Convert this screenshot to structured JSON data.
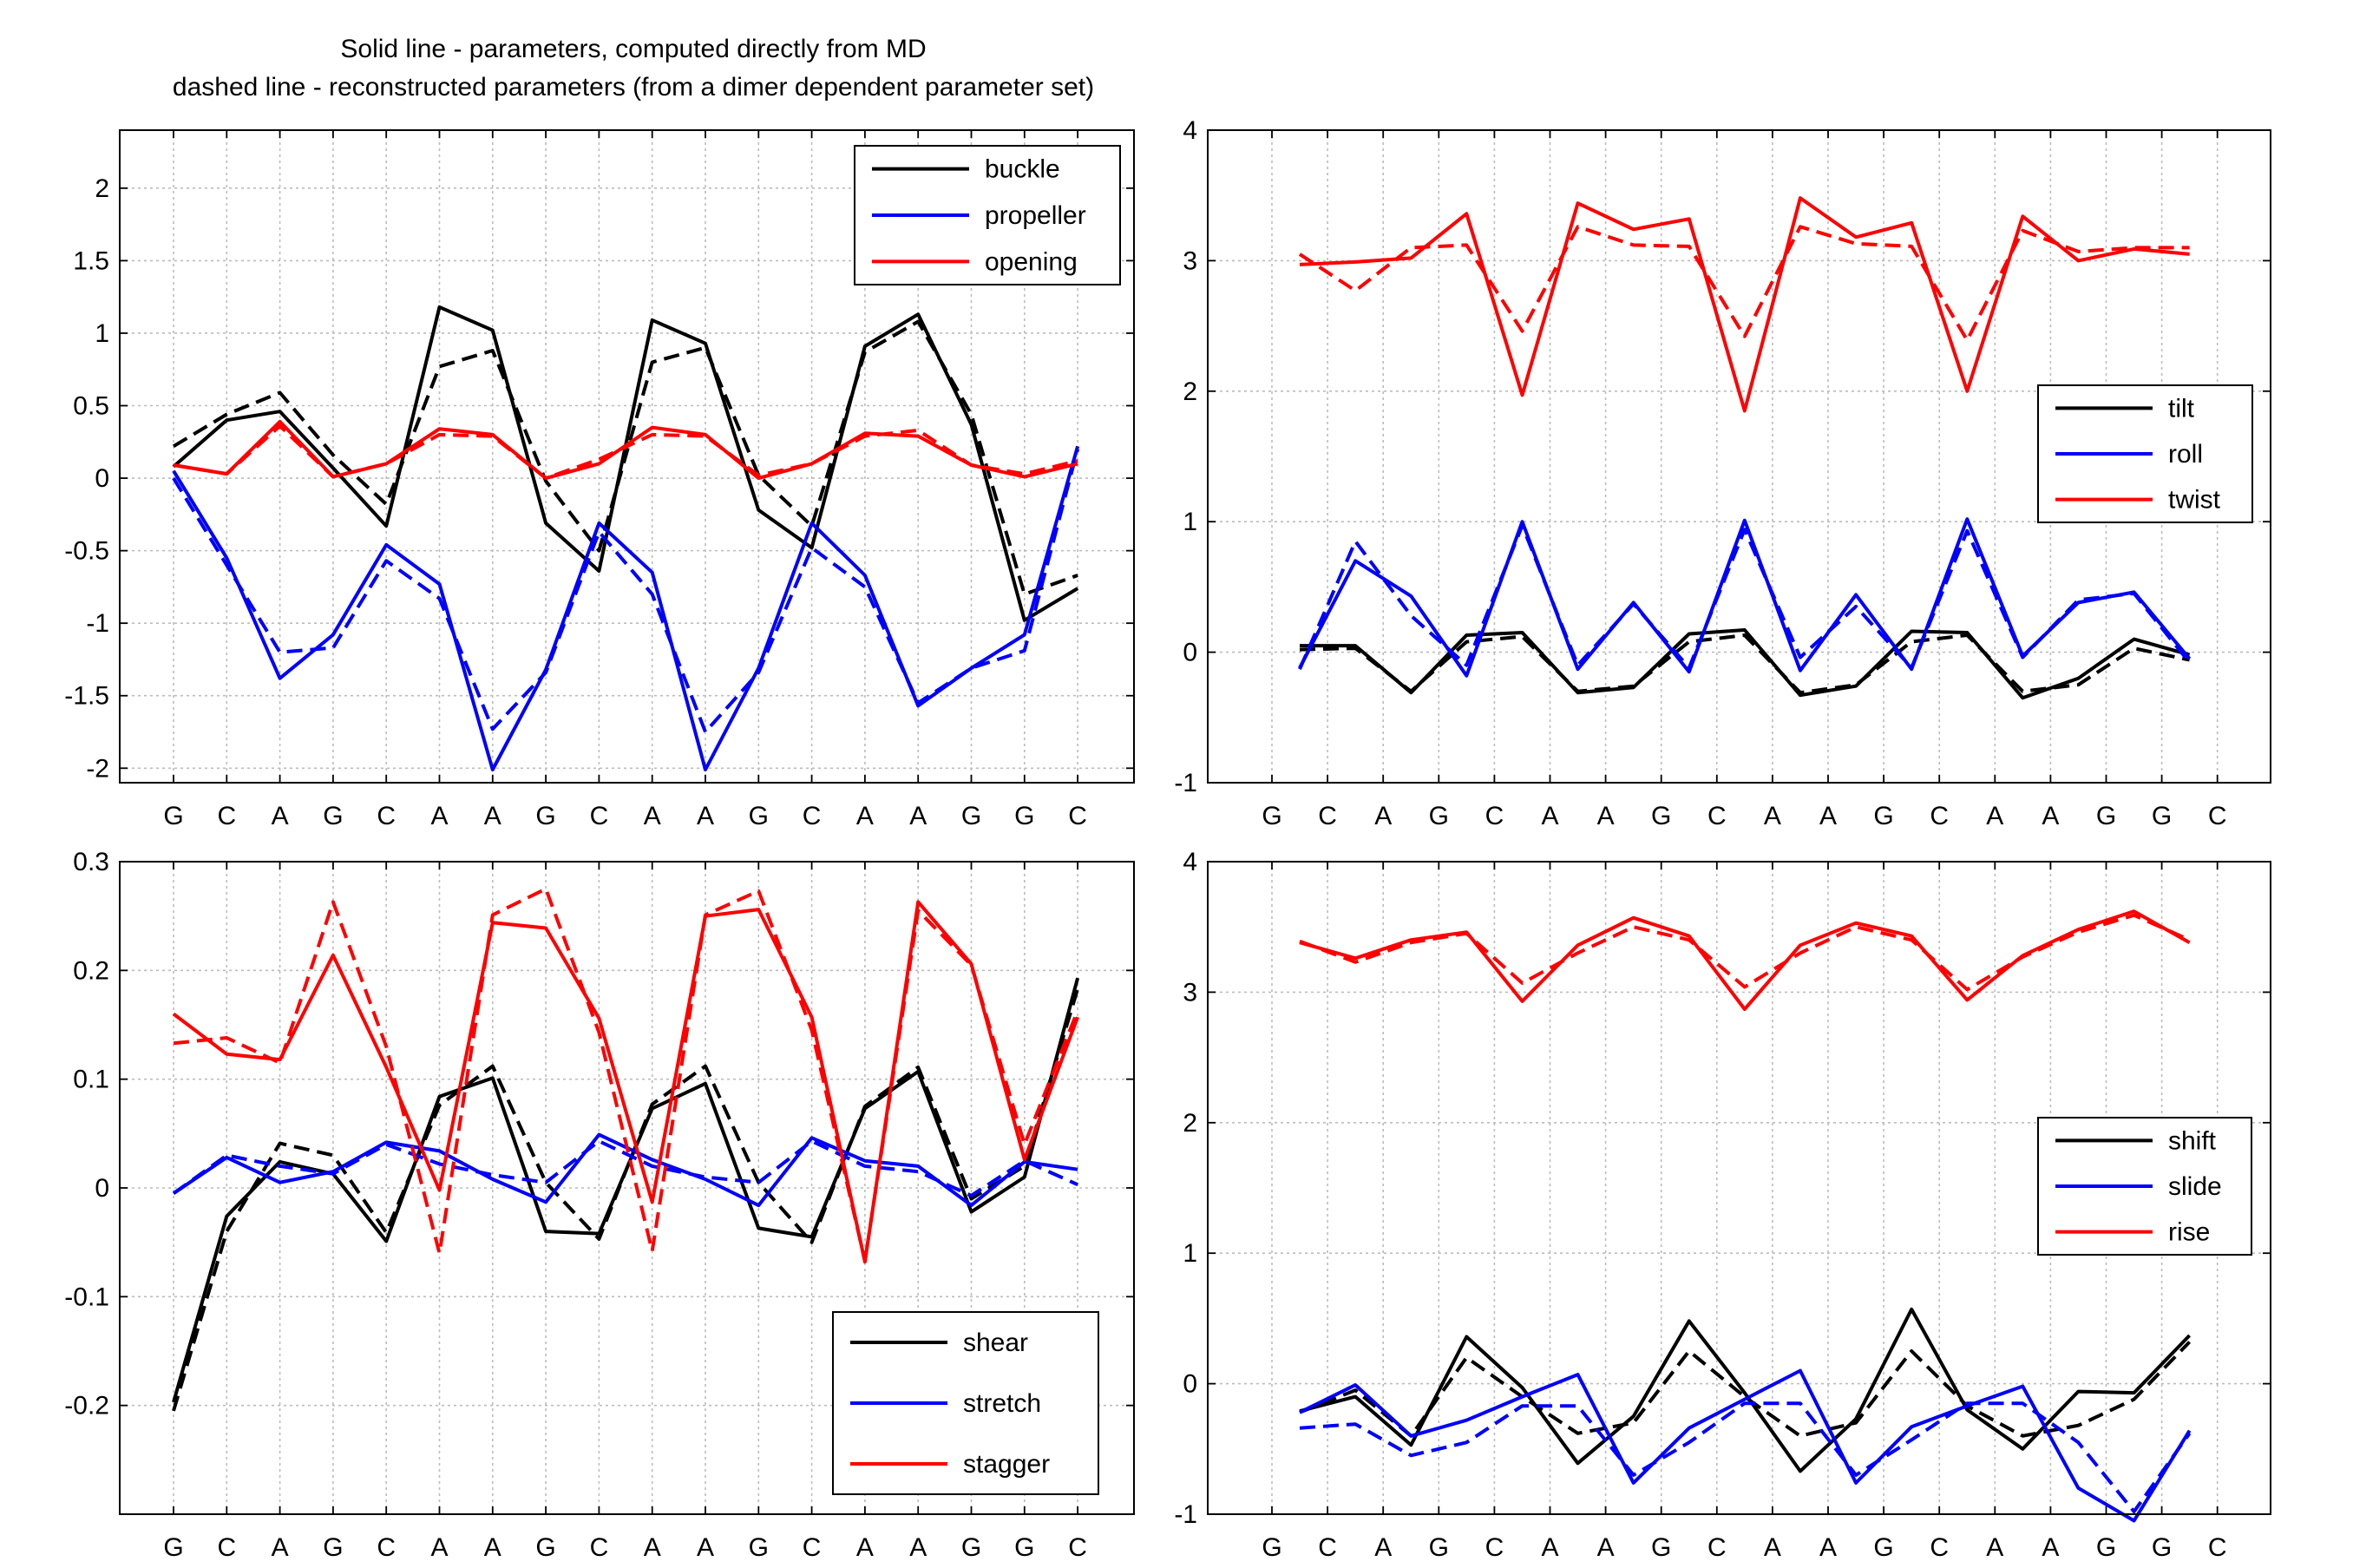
{
  "figure_title": {
    "line1": "Solid line - parameters, computed directly from MD",
    "line2": "dashed line - reconstructed parameters (from a dimer dependent parameter set)"
  },
  "colors": {
    "black": "#000000",
    "blue": "#0000ff",
    "red": "#ff0000",
    "grid": "#bcbcbc"
  },
  "chart_data": [
    {
      "id": "pair-rotations",
      "type": "line",
      "title": "",
      "xlabel": "",
      "ylabel": "",
      "categories": [
        "G",
        "C",
        "A",
        "G",
        "C",
        "A",
        "A",
        "G",
        "C",
        "A",
        "A",
        "G",
        "C",
        "A",
        "A",
        "G",
        "G",
        "C"
      ],
      "ylim": [
        -2.1,
        2.4
      ],
      "yticks": [
        -2,
        -1.5,
        -1,
        -0.5,
        0,
        0.5,
        1,
        1.5,
        2
      ],
      "ytick_labels": [
        "-2",
        "-1.5",
        "-1",
        "-0.5",
        "0",
        "0.5",
        "1",
        "1.5",
        "2"
      ],
      "grid": true,
      "legend_position": "top-right",
      "series": [
        {
          "name": "buckle",
          "color": "#000000",
          "solid": [
            0.08,
            0.4,
            0.46,
            0.07,
            -0.33,
            1.18,
            1.02,
            -0.31,
            -0.64,
            1.09,
            0.93,
            -0.22,
            -0.48,
            0.91,
            1.13,
            0.37,
            -0.98,
            -0.76
          ],
          "dashed": [
            0.22,
            0.44,
            0.59,
            0.16,
            -0.18,
            0.77,
            0.88,
            -0.02,
            -0.5,
            0.8,
            0.9,
            0.02,
            -0.33,
            0.87,
            1.08,
            0.44,
            -0.8,
            -0.67
          ]
        },
        {
          "name": "propeller",
          "color": "#0000ff",
          "solid": [
            0.05,
            -0.55,
            -1.38,
            -1.08,
            -0.46,
            -0.73,
            -2.01,
            -1.32,
            -0.31,
            -0.65,
            -2.01,
            -1.31,
            -0.31,
            -0.67,
            -1.57,
            -1.31,
            -1.08,
            0.22
          ],
          "dashed": [
            0.0,
            -0.6,
            -1.2,
            -1.17,
            -0.57,
            -0.83,
            -1.73,
            -1.34,
            -0.37,
            -0.8,
            -1.75,
            -1.34,
            -0.48,
            -0.75,
            -1.55,
            -1.31,
            -1.19,
            0.2
          ]
        },
        {
          "name": "opening",
          "color": "#ff0000",
          "solid": [
            0.09,
            0.03,
            0.39,
            0.01,
            0.1,
            0.34,
            0.3,
            0.0,
            0.1,
            0.35,
            0.3,
            0.0,
            0.1,
            0.31,
            0.29,
            0.09,
            0.01,
            0.1
          ],
          "dashed": [
            0.09,
            0.03,
            0.36,
            0.01,
            0.1,
            0.3,
            0.29,
            0.0,
            0.13,
            0.3,
            0.29,
            0.02,
            0.1,
            0.29,
            0.33,
            0.09,
            0.03,
            0.12
          ]
        }
      ]
    },
    {
      "id": "step-rotations",
      "type": "line",
      "title": "",
      "xlabel": "",
      "ylabel": "",
      "categories": [
        "G",
        "C",
        "A",
        "G",
        "C",
        "A",
        "A",
        "G",
        "C",
        "A",
        "A",
        "G",
        "C",
        "A",
        "A",
        "G",
        "G",
        "C"
      ],
      "ylim": [
        -1,
        4
      ],
      "yticks": [
        -1,
        0,
        1,
        2,
        3,
        4
      ],
      "ytick_labels": [
        "-1",
        "0",
        "1",
        "2",
        "3",
        "4"
      ],
      "grid": true,
      "legend_position": "right",
      "series": [
        {
          "name": "tilt",
          "color": "#000000",
          "solid": [
            0.05,
            0.05,
            -0.31,
            0.13,
            0.15,
            -0.31,
            -0.27,
            0.14,
            0.17,
            -0.33,
            -0.26,
            0.16,
            0.15,
            -0.35,
            -0.2,
            0.1,
            -0.02
          ],
          "dashed": [
            0.02,
            0.03,
            -0.3,
            0.08,
            0.12,
            -0.3,
            -0.26,
            0.08,
            0.13,
            -0.31,
            -0.25,
            0.08,
            0.13,
            -0.3,
            -0.25,
            0.03,
            -0.06
          ]
        },
        {
          "name": "roll",
          "color": "#0000ff",
          "solid": [
            -0.12,
            0.7,
            0.43,
            -0.18,
            1.0,
            -0.13,
            0.38,
            -0.15,
            1.01,
            -0.14,
            0.44,
            -0.13,
            1.02,
            -0.03,
            0.38,
            0.46,
            -0.05
          ],
          "dashed": [
            -0.13,
            0.85,
            0.28,
            -0.1,
            0.97,
            -0.1,
            0.37,
            -0.12,
            0.94,
            -0.04,
            0.35,
            -0.12,
            0.93,
            -0.04,
            0.4,
            0.45,
            -0.08
          ]
        },
        {
          "name": "twist",
          "color": "#ff0000",
          "solid": [
            2.97,
            2.99,
            3.02,
            3.36,
            1.97,
            3.44,
            3.24,
            3.32,
            1.85,
            3.48,
            3.18,
            3.29,
            2.0,
            3.34,
            3.0,
            3.09,
            3.05
          ],
          "dashed": [
            3.05,
            2.77,
            3.1,
            3.12,
            2.46,
            3.26,
            3.12,
            3.11,
            2.42,
            3.26,
            3.13,
            3.11,
            2.39,
            3.23,
            3.07,
            3.1,
            3.1
          ]
        }
      ]
    },
    {
      "id": "pair-translations",
      "type": "line",
      "title": "",
      "xlabel": "",
      "ylabel": "",
      "categories": [
        "G",
        "C",
        "A",
        "G",
        "C",
        "A",
        "A",
        "G",
        "C",
        "A",
        "A",
        "G",
        "C",
        "A",
        "A",
        "G",
        "G",
        "C"
      ],
      "ylim": [
        -0.3,
        0.3
      ],
      "yticks": [
        -0.2,
        -0.1,
        0,
        0.1,
        0.2,
        0.3
      ],
      "ytick_labels": [
        "-0.2",
        "-0.1",
        "0",
        "0.1",
        "0.2",
        "0.3"
      ],
      "grid": true,
      "legend_position": "bottom-right",
      "series": [
        {
          "name": "shear",
          "color": "#000000",
          "solid": [
            -0.197,
            -0.026,
            0.024,
            0.013,
            -0.049,
            0.084,
            0.101,
            -0.04,
            -0.042,
            0.073,
            0.096,
            -0.037,
            -0.045,
            0.073,
            0.107,
            -0.022,
            0.01,
            0.193
          ],
          "dashed": [
            -0.205,
            -0.04,
            0.041,
            0.03,
            -0.041,
            0.076,
            0.112,
            0.005,
            -0.047,
            0.077,
            0.112,
            0.005,
            -0.05,
            0.075,
            0.111,
            -0.01,
            0.02,
            0.183
          ]
        },
        {
          "name": "stretch",
          "color": "#0000ff",
          "solid": [
            -0.005,
            0.028,
            0.005,
            0.015,
            0.042,
            0.034,
            0.008,
            -0.013,
            0.049,
            0.026,
            0.008,
            -0.016,
            0.046,
            0.025,
            0.02,
            -0.016,
            0.024,
            0.017
          ],
          "dashed": [
            -0.005,
            0.03,
            0.02,
            0.013,
            0.04,
            0.022,
            0.012,
            0.005,
            0.043,
            0.02,
            0.01,
            0.005,
            0.043,
            0.02,
            0.015,
            -0.007,
            0.025,
            0.003
          ]
        },
        {
          "name": "stagger",
          "color": "#ff0000",
          "solid": [
            0.16,
            0.123,
            0.118,
            0.214,
            0.111,
            -0.002,
            0.244,
            0.239,
            0.156,
            -0.013,
            0.25,
            0.256,
            0.157,
            -0.068,
            0.263,
            0.206,
            0.026,
            0.157
          ],
          "dashed": [
            0.133,
            0.138,
            0.115,
            0.263,
            0.13,
            -0.06,
            0.251,
            0.275,
            0.143,
            -0.058,
            0.251,
            0.273,
            0.145,
            -0.067,
            0.255,
            0.205,
            0.04,
            0.163
          ]
        }
      ]
    },
    {
      "id": "step-translations",
      "type": "line",
      "title": "",
      "xlabel": "",
      "ylabel": "",
      "categories": [
        "G",
        "C",
        "A",
        "G",
        "C",
        "A",
        "A",
        "G",
        "C",
        "A",
        "A",
        "G",
        "C",
        "A",
        "A",
        "G",
        "G",
        "C"
      ],
      "ylim": [
        -1,
        4
      ],
      "yticks": [
        -1,
        0,
        1,
        2,
        3,
        4
      ],
      "ytick_labels": [
        "-1",
        "0",
        "1",
        "2",
        "3",
        "4"
      ],
      "grid": true,
      "legend_position": "right",
      "series": [
        {
          "name": "shift",
          "color": "#000000",
          "solid": [
            -0.21,
            -0.1,
            -0.47,
            0.36,
            -0.03,
            -0.61,
            -0.25,
            0.48,
            -0.07,
            -0.67,
            -0.27,
            0.57,
            -0.2,
            -0.5,
            -0.06,
            -0.07,
            0.37
          ],
          "dashed": [
            -0.22,
            -0.05,
            -0.4,
            0.2,
            -0.1,
            -0.38,
            -0.3,
            0.25,
            -0.1,
            -0.4,
            -0.3,
            0.25,
            -0.17,
            -0.4,
            -0.32,
            -0.12,
            0.32
          ]
        },
        {
          "name": "slide",
          "color": "#0000ff",
          "solid": [
            -0.22,
            -0.01,
            -0.4,
            -0.28,
            -0.1,
            0.07,
            -0.76,
            -0.34,
            -0.12,
            0.1,
            -0.76,
            -0.33,
            -0.17,
            -0.02,
            -0.8,
            -1.05,
            -0.36
          ],
          "dashed": [
            -0.34,
            -0.31,
            -0.55,
            -0.45,
            -0.17,
            -0.17,
            -0.7,
            -0.45,
            -0.15,
            -0.15,
            -0.7,
            -0.43,
            -0.15,
            -0.15,
            -0.45,
            -0.98,
            -0.38
          ]
        },
        {
          "name": "rise",
          "color": "#ff0000",
          "solid": [
            3.38,
            3.26,
            3.4,
            3.46,
            2.93,
            3.36,
            3.57,
            3.43,
            2.87,
            3.36,
            3.53,
            3.43,
            2.94,
            3.28,
            3.48,
            3.62,
            3.38
          ],
          "dashed": [
            3.39,
            3.23,
            3.38,
            3.45,
            3.07,
            3.3,
            3.5,
            3.4,
            3.04,
            3.3,
            3.5,
            3.4,
            3.02,
            3.27,
            3.46,
            3.59,
            3.4
          ]
        }
      ]
    }
  ]
}
